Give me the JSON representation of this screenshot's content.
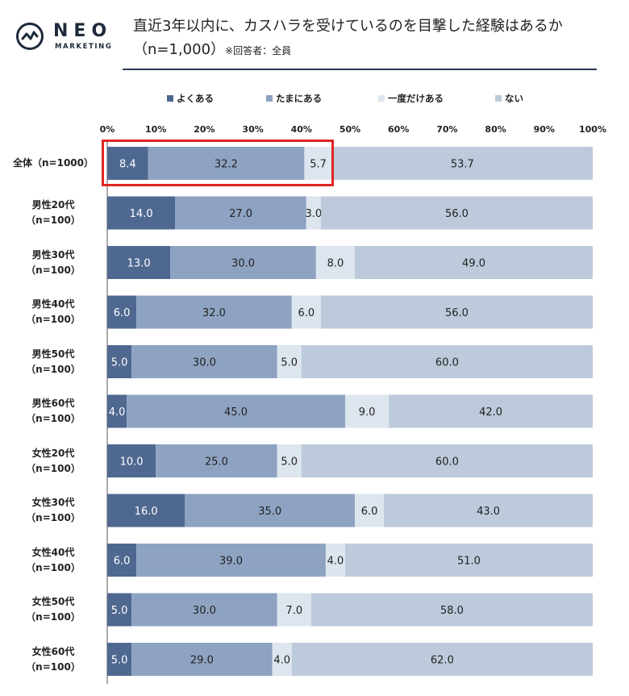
{
  "logo": {
    "brand": "NEO",
    "sub": "MARKETING"
  },
  "header": {
    "title": "直近3年以内に、カスハラを受けているのを目撃した経験はあるか",
    "sample": "（n=1,000）",
    "note": "※回答者：全員"
  },
  "colors": {
    "often": "#4f6890",
    "sometimes": "#8ea3c2",
    "once": "#dde5ee",
    "never": "#bccadb"
  },
  "chart_data": {
    "type": "bar",
    "orientation": "horizontal",
    "stacked": true,
    "xlim": [
      0,
      100
    ],
    "x_ticks": [
      "0%",
      "10%",
      "20%",
      "30%",
      "40%",
      "50%",
      "60%",
      "70%",
      "80%",
      "90%",
      "100%"
    ],
    "legend_position": "top",
    "categories": [
      [
        "全体（n=1000）"
      ],
      [
        "男性20代",
        "（n=100）"
      ],
      [
        "男性30代",
        "（n=100）"
      ],
      [
        "男性40代",
        "（n=100）"
      ],
      [
        "男性50代",
        "（n=100）"
      ],
      [
        "男性60代",
        "（n=100）"
      ],
      [
        "女性20代",
        "（n=100）"
      ],
      [
        "女性30代",
        "（n=100）"
      ],
      [
        "女性40代",
        "（n=100）"
      ],
      [
        "女性50代",
        "（n=100）"
      ],
      [
        "女性60代",
        "（n=100）"
      ]
    ],
    "series": [
      {
        "name": "よくある",
        "color": "#4f6890",
        "values": [
          8.4,
          14.0,
          13.0,
          6.0,
          5.0,
          4.0,
          10.0,
          16.0,
          6.0,
          5.0,
          5.0
        ]
      },
      {
        "name": "たまにある",
        "color": "#8ea3c2",
        "values": [
          32.2,
          27.0,
          30.0,
          32.0,
          30.0,
          45.0,
          25.0,
          35.0,
          39.0,
          30.0,
          29.0
        ]
      },
      {
        "name": "一度だけある",
        "color": "#dde5ee",
        "values": [
          5.7,
          3.0,
          8.0,
          6.0,
          5.0,
          9.0,
          5.0,
          6.0,
          4.0,
          7.0,
          4.0
        ]
      },
      {
        "name": "ない",
        "color": "#bccadb",
        "values": [
          53.7,
          56.0,
          49.0,
          56.0,
          60.0,
          42.0,
          60.0,
          43.0,
          51.0,
          58.0,
          62.0
        ]
      }
    ],
    "value_labels": [
      [
        "8.4",
        "32.2",
        "5.7",
        "53.7"
      ],
      [
        "14.0",
        "27.0",
        "3.0",
        "56.0"
      ],
      [
        "13.0",
        "30.0",
        "8.0",
        "49.0"
      ],
      [
        "6.0",
        "32.0",
        "6.0",
        "56.0"
      ],
      [
        "5.0",
        "30.0",
        "5.0",
        "60.0"
      ],
      [
        "4.0",
        "45.0",
        "9.0",
        "42.0"
      ],
      [
        "10.0",
        "25.0",
        "5.0",
        "60.0"
      ],
      [
        "16.0",
        "35.0",
        "6.0",
        "43.0"
      ],
      [
        "6.0",
        "39.0",
        "4.0",
        "51.0"
      ],
      [
        "5.0",
        "30.0",
        "7.0",
        "58.0"
      ],
      [
        "5.0",
        "29.0",
        "4.0",
        "62.0"
      ]
    ],
    "highlighted_category": 0
  }
}
